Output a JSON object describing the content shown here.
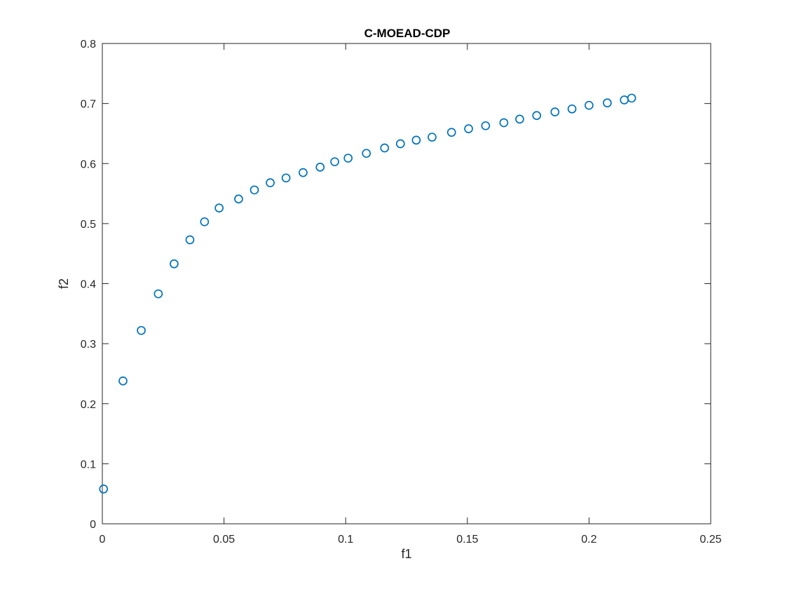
{
  "chart_data": {
    "type": "scatter",
    "title": "C-MOEAD-CDP",
    "xlabel": "f1",
    "ylabel": "f2",
    "xlim": [
      0,
      0.25
    ],
    "ylim": [
      0,
      0.8
    ],
    "xticks": [
      0,
      0.05,
      0.1,
      0.15,
      0.2,
      0.25
    ],
    "xtick_labels": [
      "0",
      "0.05",
      "0.1",
      "0.15",
      "0.2",
      "0.25"
    ],
    "yticks": [
      0,
      0.1,
      0.2,
      0.3,
      0.4,
      0.5,
      0.6,
      0.7,
      0.8
    ],
    "ytick_labels": [
      "0",
      "0.1",
      "0.2",
      "0.3",
      "0.4",
      "0.5",
      "0.6",
      "0.7",
      "0.8"
    ],
    "grid": false,
    "marker": "circle-open",
    "marker_color": "#0072bd",
    "axis_color": "#262626",
    "points": [
      {
        "x": 0.0005,
        "y": 0.058
      },
      {
        "x": 0.0085,
        "y": 0.238
      },
      {
        "x": 0.016,
        "y": 0.322
      },
      {
        "x": 0.023,
        "y": 0.383
      },
      {
        "x": 0.0295,
        "y": 0.433
      },
      {
        "x": 0.036,
        "y": 0.473
      },
      {
        "x": 0.042,
        "y": 0.503
      },
      {
        "x": 0.048,
        "y": 0.526
      },
      {
        "x": 0.056,
        "y": 0.541
      },
      {
        "x": 0.0625,
        "y": 0.556
      },
      {
        "x": 0.069,
        "y": 0.568
      },
      {
        "x": 0.0755,
        "y": 0.576
      },
      {
        "x": 0.0825,
        "y": 0.585
      },
      {
        "x": 0.0895,
        "y": 0.594
      },
      {
        "x": 0.0955,
        "y": 0.603
      },
      {
        "x": 0.101,
        "y": 0.609
      },
      {
        "x": 0.1085,
        "y": 0.617
      },
      {
        "x": 0.116,
        "y": 0.626
      },
      {
        "x": 0.1225,
        "y": 0.633
      },
      {
        "x": 0.129,
        "y": 0.639
      },
      {
        "x": 0.1355,
        "y": 0.644
      },
      {
        "x": 0.1435,
        "y": 0.652
      },
      {
        "x": 0.1505,
        "y": 0.658
      },
      {
        "x": 0.1575,
        "y": 0.663
      },
      {
        "x": 0.165,
        "y": 0.668
      },
      {
        "x": 0.1715,
        "y": 0.674
      },
      {
        "x": 0.1785,
        "y": 0.68
      },
      {
        "x": 0.186,
        "y": 0.686
      },
      {
        "x": 0.193,
        "y": 0.691
      },
      {
        "x": 0.2,
        "y": 0.697
      },
      {
        "x": 0.2075,
        "y": 0.701
      },
      {
        "x": 0.2145,
        "y": 0.706
      },
      {
        "x": 0.2175,
        "y": 0.709
      }
    ]
  }
}
